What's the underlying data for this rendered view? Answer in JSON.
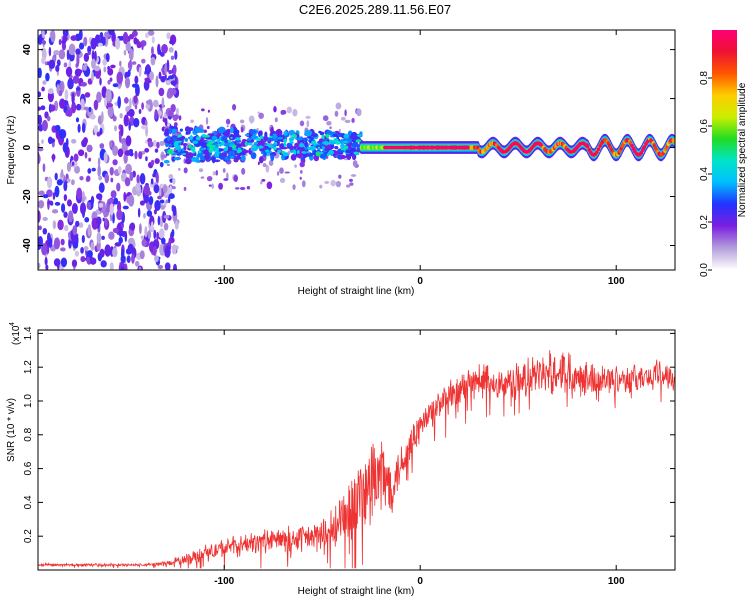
{
  "chart_data": [
    {
      "type": "heatmap",
      "title": "C2E6.2025.289.11.56.E07",
      "xlabel": "Height of straight line (km)",
      "ylabel": "Frequency (Hz)",
      "xlim": [
        -195,
        130
      ],
      "ylim": [
        -50,
        48
      ],
      "xticks": [
        -100,
        0,
        100
      ],
      "yticks": [
        -40,
        -20,
        0,
        20,
        40
      ],
      "colorbar": {
        "label": "Normalized spectral amplitude",
        "range": [
          0,
          1
        ],
        "ticks": [
          "0.0",
          "0.2",
          "0.4",
          "0.6",
          "0.8"
        ],
        "colors": [
          "#ffffff",
          "#b39ddb",
          "#7b1fe0",
          "#2233ff",
          "#00bfff",
          "#00e5c8",
          "#22dd22",
          "#ccee00",
          "#ffcc00",
          "#ff5500",
          "#ee1133",
          "#ff0077"
        ]
      },
      "regions": [
        {
          "name": "noise",
          "x": [
            -195,
            -130
          ],
          "freq": [
            -50,
            48
          ],
          "amplitude": "0.1-0.3"
        },
        {
          "name": "scattered echoes",
          "x": [
            -130,
            -30
          ],
          "freq": [
            -10,
            8
          ],
          "amplitude": "0.2-0.5"
        },
        {
          "name": "signal line",
          "x": [
            -30,
            130
          ],
          "freq": [
            -3,
            3
          ],
          "amplitude": "0.6-1.0"
        }
      ]
    },
    {
      "type": "line",
      "xlabel": "Height of straight line (km)",
      "ylabel": "SNR (10 * v/v)",
      "y_scale_label": "(x10",
      "y_scale_exponent": "4",
      "xlim": [
        -195,
        130
      ],
      "ylim": [
        0,
        1.42
      ],
      "xticks": [
        -100,
        0,
        100
      ],
      "yticks": [
        0.2,
        0.4,
        0.6,
        0.8,
        1.0,
        1.2,
        1.4
      ],
      "color": "#ee3333",
      "series": [
        {
          "name": "SNR",
          "x": [
            -195,
            -140,
            -130,
            -120,
            -110,
            -100,
            -90,
            -80,
            -70,
            -60,
            -50,
            -45,
            -40,
            -35,
            -30,
            -25,
            -20,
            -15,
            -10,
            -5,
            0,
            5,
            10,
            20,
            25,
            30,
            40,
            50,
            60,
            70,
            80,
            90,
            100,
            110,
            120,
            130
          ],
          "values": [
            0.03,
            0.03,
            0.04,
            0.06,
            0.1,
            0.13,
            0.15,
            0.17,
            0.18,
            0.19,
            0.2,
            0.22,
            0.3,
            0.38,
            0.45,
            0.5,
            0.55,
            0.5,
            0.62,
            0.75,
            0.85,
            0.92,
            0.98,
            1.05,
            1.1,
            1.13,
            1.1,
            1.12,
            1.15,
            1.18,
            1.17,
            1.12,
            1.14,
            1.13,
            1.16,
            1.14
          ],
          "noise_amplitude": [
            0.01,
            0.01,
            0.015,
            0.04,
            0.06,
            0.07,
            0.07,
            0.08,
            0.09,
            0.09,
            0.12,
            0.15,
            0.2,
            0.25,
            0.3,
            0.35,
            0.35,
            0.2,
            0.15,
            0.12,
            0.12,
            0.12,
            0.12,
            0.12,
            0.12,
            0.12,
            0.12,
            0.13,
            0.14,
            0.16,
            0.14,
            0.12,
            0.1,
            0.1,
            0.1,
            0.1
          ]
        }
      ]
    }
  ]
}
